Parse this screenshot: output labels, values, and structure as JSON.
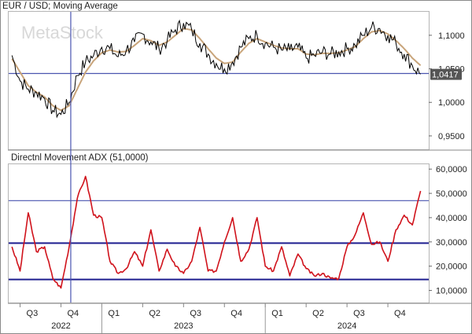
{
  "watermark": "MetaStock",
  "colors": {
    "price": "#000000",
    "moving_average": "#c8a47a",
    "adx": "#d0121b",
    "hline_blue": "#1f1f8f",
    "crosshair": "#4a55b0",
    "frame": "#8a8a8a",
    "price_badge_bg": "#555555",
    "price_badge_text": "#ffffff"
  },
  "chart_data": [
    {
      "type": "line",
      "title": "EUR / USD; Moving Average",
      "yaxis_side": "right",
      "ylim": [
        0.93,
        1.135
      ],
      "yticks": [
        "1,1000",
        "1,0500",
        "1,0000",
        "0,9500"
      ],
      "ytick_values": [
        1.1,
        1.05,
        1.0,
        0.95
      ],
      "last_value_label": "1,0417",
      "last_value": 1.0417,
      "reference_line": 1.043,
      "crosshair_x": 2022.81,
      "x_range": [
        2022.43,
        2025.0
      ],
      "series": [
        {
          "key": "price",
          "x": [
            2022.45,
            2022.5,
            2022.55,
            2022.6,
            2022.65,
            2022.7,
            2022.75,
            2022.8,
            2022.85,
            2022.9,
            2022.95,
            2023.0,
            2023.05,
            2023.1,
            2023.15,
            2023.2,
            2023.25,
            2023.3,
            2023.35,
            2023.4,
            2023.45,
            2023.5,
            2023.55,
            2023.6,
            2023.65,
            2023.7,
            2023.75,
            2023.8,
            2023.85,
            2023.9,
            2023.95,
            2024.0,
            2024.05,
            2024.1,
            2024.15,
            2024.2,
            2024.25,
            2024.3,
            2024.35,
            2024.4,
            2024.45,
            2024.5,
            2024.55,
            2024.6,
            2024.65,
            2024.7,
            2024.75,
            2024.8,
            2024.85,
            2024.9,
            2024.95
          ],
          "values": [
            1.07,
            1.032,
            1.02,
            1.015,
            1.006,
            0.988,
            0.982,
            1.0,
            1.04,
            1.06,
            1.07,
            1.082,
            1.08,
            1.068,
            1.078,
            1.09,
            1.102,
            1.09,
            1.08,
            1.092,
            1.108,
            1.118,
            1.108,
            1.088,
            1.072,
            1.058,
            1.05,
            1.06,
            1.082,
            1.095,
            1.1,
            1.088,
            1.082,
            1.078,
            1.078,
            1.082,
            1.066,
            1.07,
            1.075,
            1.072,
            1.075,
            1.08,
            1.085,
            1.1,
            1.112,
            1.11,
            1.1,
            1.088,
            1.072,
            1.055,
            1.042
          ]
        },
        {
          "key": "moving_average",
          "x": [
            2022.45,
            2022.5,
            2022.55,
            2022.6,
            2022.65,
            2022.7,
            2022.75,
            2022.8,
            2022.85,
            2022.9,
            2022.95,
            2023.0,
            2023.05,
            2023.1,
            2023.15,
            2023.2,
            2023.25,
            2023.3,
            2023.35,
            2023.4,
            2023.45,
            2023.5,
            2023.55,
            2023.6,
            2023.65,
            2023.7,
            2023.75,
            2023.8,
            2023.85,
            2023.9,
            2023.95,
            2024.0,
            2024.05,
            2024.1,
            2024.15,
            2024.2,
            2024.25,
            2024.3,
            2024.35,
            2024.4,
            2024.45,
            2024.5,
            2024.55,
            2024.6,
            2024.65,
            2024.7,
            2024.75,
            2024.8,
            2024.85,
            2024.9,
            2024.95
          ],
          "values": [
            1.065,
            1.045,
            1.025,
            1.015,
            1.008,
            0.995,
            0.988,
            0.995,
            1.02,
            1.045,
            1.062,
            1.074,
            1.078,
            1.075,
            1.076,
            1.085,
            1.095,
            1.092,
            1.085,
            1.09,
            1.1,
            1.11,
            1.108,
            1.095,
            1.08,
            1.066,
            1.058,
            1.06,
            1.075,
            1.088,
            1.095,
            1.09,
            1.085,
            1.081,
            1.08,
            1.08,
            1.072,
            1.071,
            1.073,
            1.073,
            1.074,
            1.078,
            1.083,
            1.095,
            1.105,
            1.107,
            1.102,
            1.092,
            1.08,
            1.066,
            1.055
          ]
        }
      ]
    },
    {
      "type": "line",
      "title": "Directnl Movement ADX (51,0000)",
      "yaxis_side": "right",
      "ylim": [
        5,
        62
      ],
      "yticks": [
        "60,0000",
        "50,0000",
        "40,0000",
        "30,0000",
        "20,0000",
        "10,0000"
      ],
      "ytick_values": [
        60,
        50,
        40,
        30,
        20,
        10
      ],
      "reference_lines": [
        47,
        29.5,
        14.5
      ],
      "crosshair_x": 2022.81,
      "x_range": [
        2022.43,
        2025.0
      ],
      "series": [
        {
          "key": "adx",
          "x": [
            2022.45,
            2022.5,
            2022.55,
            2022.6,
            2022.65,
            2022.7,
            2022.75,
            2022.8,
            2022.85,
            2022.9,
            2022.95,
            2023.0,
            2023.05,
            2023.1,
            2023.15,
            2023.2,
            2023.25,
            2023.3,
            2023.35,
            2023.4,
            2023.45,
            2023.5,
            2023.55,
            2023.6,
            2023.65,
            2023.7,
            2023.75,
            2023.8,
            2023.85,
            2023.9,
            2023.95,
            2024.0,
            2024.05,
            2024.1,
            2024.15,
            2024.2,
            2024.25,
            2024.3,
            2024.35,
            2024.4,
            2024.45,
            2024.5,
            2024.55,
            2024.6,
            2024.65,
            2024.7,
            2024.75,
            2024.8,
            2024.85,
            2024.9,
            2024.95
          ],
          "values": [
            28,
            18,
            42,
            26,
            28,
            15,
            11,
            28,
            48,
            57,
            41,
            40,
            22,
            17,
            19,
            26,
            20,
            35,
            18,
            27,
            20,
            17,
            22,
            36,
            18,
            18,
            30,
            40,
            22,
            27,
            40,
            20,
            18,
            28,
            16,
            25,
            19,
            16,
            17,
            15,
            15,
            28,
            33,
            42,
            29,
            30,
            22,
            35,
            41,
            37,
            51
          ]
        }
      ]
    }
  ],
  "x_axis": {
    "quarters": [
      {
        "label": "Q3",
        "x": 2022.5
      },
      {
        "label": "Q4",
        "x": 2022.75
      },
      {
        "label": "Q1",
        "x": 2023.0
      },
      {
        "label": "Q2",
        "x": 2023.25
      },
      {
        "label": "Q3",
        "x": 2023.5
      },
      {
        "label": "Q4",
        "x": 2023.75
      },
      {
        "label": "Q1",
        "x": 2024.0
      },
      {
        "label": "Q2",
        "x": 2024.25
      },
      {
        "label": "Q3",
        "x": 2024.5
      },
      {
        "label": "Q4",
        "x": 2024.75
      }
    ],
    "years": [
      {
        "label": "2022",
        "x": 2022.75
      },
      {
        "label": "2023",
        "x": 2023.5
      },
      {
        "label": "2024",
        "x": 2024.5
      }
    ]
  }
}
